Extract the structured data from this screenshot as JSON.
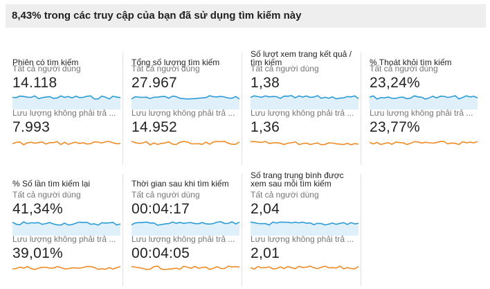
{
  "banner": "8,43% trong các truy cập của bạn đã sử dụng tìm kiếm này",
  "colors": {
    "all_users": "#2b9bd6",
    "all_users_fill": "#dff0fa",
    "non_paid": "#f08a24"
  },
  "segments": {
    "all_users": "Tất cả người dùng",
    "non_paid": "Lưu lượng không phải trả ..."
  },
  "metrics": [
    {
      "title": "Phiên có tìm kiếm",
      "all_value": "14.118",
      "non_paid_value": "7.993"
    },
    {
      "title": "Tổng số lượng tìm kiếm",
      "all_value": "27.967",
      "non_paid_value": "14.952"
    },
    {
      "title": "Số lượt xem trang kết quả / tìm kiếm",
      "all_value": "1,38",
      "non_paid_value": "1,36"
    },
    {
      "title": "% Thoát khỏi tìm kiếm",
      "all_value": "23,24%",
      "non_paid_value": "23,77%"
    },
    {
      "title": "% Số lần tìm kiếm lại",
      "all_value": "41,34%",
      "non_paid_value": "39,01%"
    },
    {
      "title": "Thời gian sau khi tìm kiếm",
      "all_value": "00:04:17",
      "non_paid_value": "00:04:05"
    },
    {
      "title": "Số trang trung bình được xem sau mỗi tìm kiếm",
      "all_value": "2,04",
      "non_paid_value": "2,01"
    }
  ]
}
